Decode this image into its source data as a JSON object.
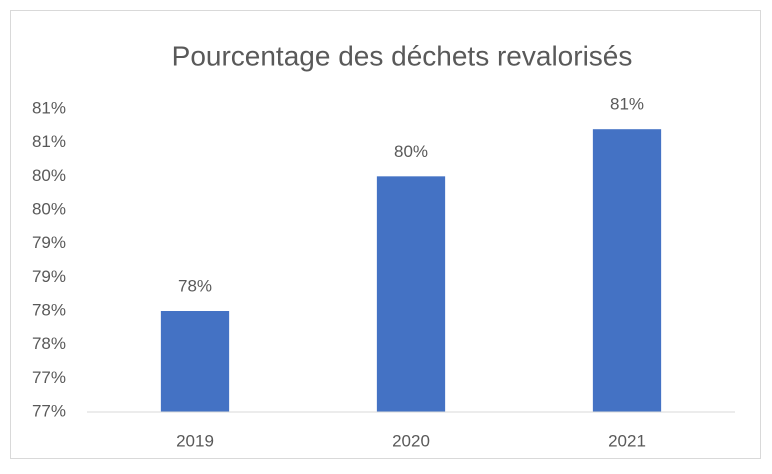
{
  "chart_data": {
    "type": "bar",
    "title": "Pourcentage des déchets revalorisés",
    "categories": [
      "2019",
      "2020",
      "2021"
    ],
    "values": [
      78,
      80,
      80.7
    ],
    "value_labels": [
      "78%",
      "80%",
      "81%"
    ],
    "color": "#4472c4",
    "ylim": [
      76.5,
      81
    ],
    "yticks": [
      {
        "value": 76.5,
        "label": "77%"
      },
      {
        "value": 77,
        "label": "77%"
      },
      {
        "value": 77.5,
        "label": "78%"
      },
      {
        "value": 78,
        "label": "78%"
      },
      {
        "value": 78.5,
        "label": "79%"
      },
      {
        "value": 79,
        "label": "79%"
      },
      {
        "value": 79.5,
        "label": "80%"
      },
      {
        "value": 80,
        "label": "80%"
      },
      {
        "value": 80.5,
        "label": "81%"
      },
      {
        "value": 81,
        "label": "81%"
      }
    ],
    "grid": false
  }
}
